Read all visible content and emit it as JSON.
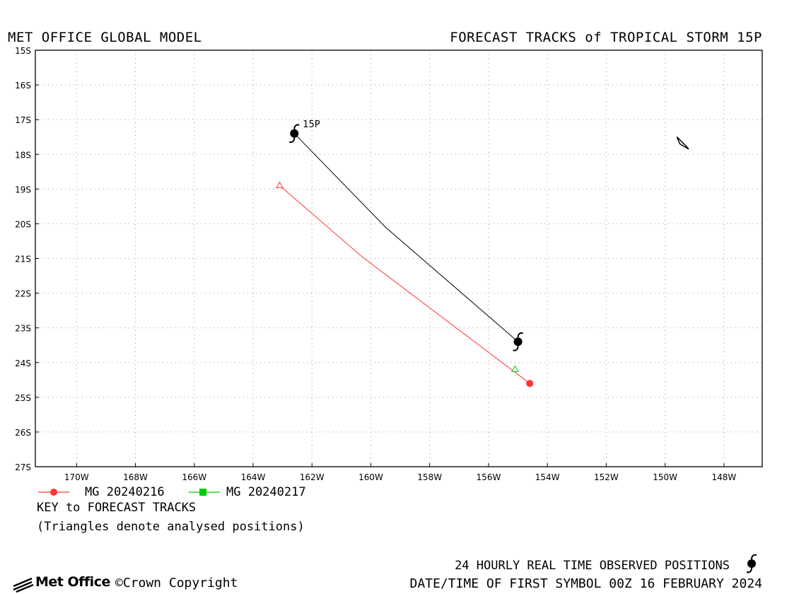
{
  "header": {
    "left_title": "MET OFFICE GLOBAL MODEL",
    "right_title": "FORECAST TRACKS of TROPICAL STORM 15P"
  },
  "chart_data": {
    "type": "map-tracks",
    "lon_range": [
      -171.4,
      -146.7
    ],
    "lat_range": [
      -27.0,
      -15.0
    ],
    "grid": true,
    "y_ticks": [
      "15S",
      "16S",
      "17S",
      "18S",
      "19S",
      "20S",
      "21S",
      "22S",
      "23S",
      "24S",
      "25S",
      "26S",
      "27S"
    ],
    "x_ticks": [
      "170W",
      "168W",
      "166W",
      "164W",
      "162W",
      "160W",
      "158W",
      "156W",
      "154W",
      "152W",
      "150W",
      "148W"
    ],
    "observed_track": {
      "name": "24 HOURLY REAL TIME OBSERVED POSITIONS",
      "color": "#000000",
      "points": [
        {
          "lon": -162.6,
          "lat": -17.4
        },
        {
          "lon": -159.5,
          "lat": -20.1
        },
        {
          "lon": -155.0,
          "lat": -23.4
        }
      ],
      "storm_label": "15P"
    },
    "forecast_tracks": [
      {
        "name": "MG 20240216",
        "color": "#ff3333",
        "points": [
          {
            "lon": -163.1,
            "lat": -18.9
          },
          {
            "lon": -160.3,
            "lat": -20.95
          },
          {
            "lon": -154.6,
            "lat": -24.6
          }
        ],
        "analysed_triangle_index": 0,
        "end_marker": "circle"
      },
      {
        "name": "MG 20240217",
        "color": "#00cc00",
        "points": [
          {
            "lon": -155.1,
            "lat": -24.2
          }
        ],
        "analysed_triangle_index": 0,
        "end_marker": "none"
      }
    ],
    "land_outline": {
      "points": [
        {
          "lon": -149.6,
          "lat": -17.5
        },
        {
          "lon": -149.3,
          "lat": -17.75
        },
        {
          "lon": -149.2,
          "lat": -17.85
        },
        {
          "lon": -149.5,
          "lat": -17.7
        }
      ]
    }
  },
  "legend": {
    "items": [
      {
        "label": "MG 20240216",
        "color": "#ff3333",
        "marker": "circle"
      },
      {
        "label": "MG 20240217",
        "color": "#00cc00",
        "marker": "square"
      }
    ],
    "key_title": "KEY to FORECAST TRACKS",
    "key_note": "(Triangles denote analysed positions)"
  },
  "footer": {
    "observed_label": "24 HOURLY REAL TIME OBSERVED POSITIONS",
    "datetime_label": "DATE/TIME OF FIRST SYMBOL 00Z 16 FEBRUARY 2024",
    "logo_text": "Met Office",
    "copyright": "©Crown Copyright"
  }
}
